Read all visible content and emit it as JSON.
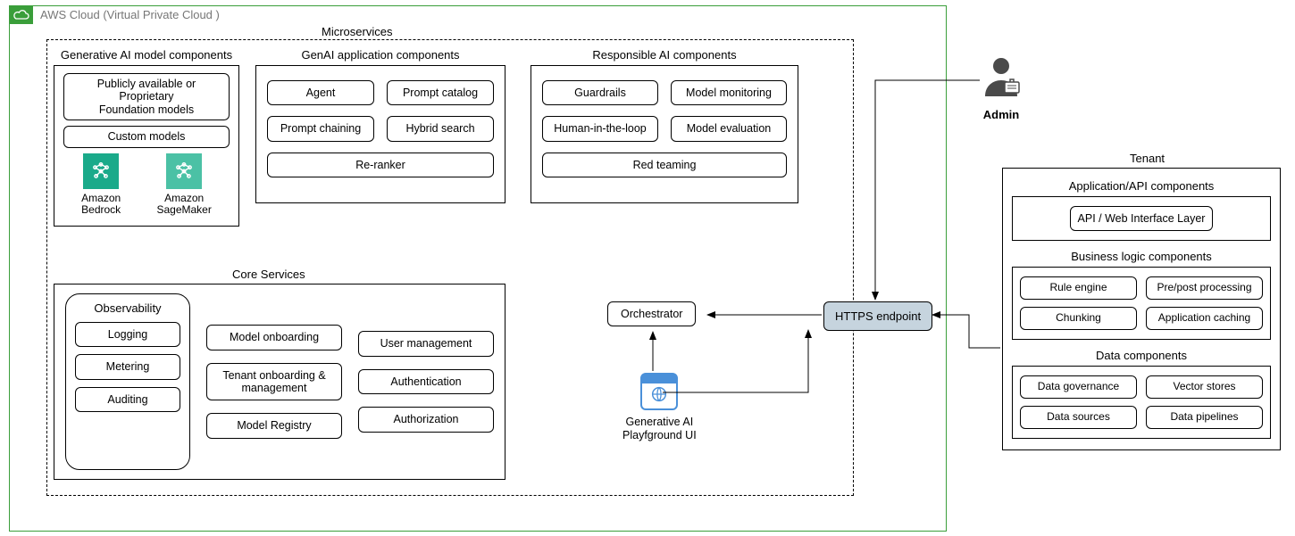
{
  "cloud": {
    "title": "AWS Cloud (Virtual Private Cloud )",
    "border_color": "#3a9e3a"
  },
  "microservices": {
    "title": "Microservices"
  },
  "genai_model": {
    "title": "Generative AI model components",
    "foundation": "Publicly available or\nProprietary\nFoundation models",
    "custom": "Custom models",
    "services": [
      {
        "label": "Amazon\nBedrock",
        "icon_bg": "#1aaa8a"
      },
      {
        "label": "Amazon\nSageMaker",
        "icon_bg": "#4bc1a5"
      }
    ]
  },
  "genai_app": {
    "title": "GenAI application components",
    "items": [
      "Agent",
      "Prompt catalog",
      "Prompt chaining",
      "Hybrid search",
      "Re-ranker"
    ]
  },
  "resp_ai": {
    "title": "Responsible AI components",
    "items": [
      "Guardrails",
      "Model monitoring",
      "Human-in-the-loop",
      "Model evaluation",
      "Red teaming"
    ]
  },
  "core": {
    "title": "Core Services",
    "observability": {
      "title": "Observability",
      "items": [
        "Logging",
        "Metering",
        "Auditing"
      ]
    },
    "col1": [
      "Model onboarding",
      "Tenant onboarding & management",
      "Model Registry"
    ],
    "col2": [
      "User management",
      "Authentication",
      "Authorization"
    ]
  },
  "orchestrator": {
    "label": "Orchestrator"
  },
  "playground": {
    "label": "Generative AI\nPlayfground UI",
    "accent": "#4a90d9"
  },
  "https": {
    "label": "HTTPS endpoint",
    "bg": "#c6d4de"
  },
  "admin": {
    "label": "Admin"
  },
  "tenant": {
    "title": "Tenant",
    "api": {
      "title": "Application/API components",
      "box": "API / Web Interface Layer"
    },
    "business": {
      "title": "Business logic components",
      "col1": [
        "Rule engine",
        "Chunking"
      ],
      "col2": [
        "Pre/post processing",
        "Application caching"
      ]
    },
    "data": {
      "title": "Data components",
      "col1": [
        "Data governance",
        "Data sources"
      ],
      "col2": [
        "Vector stores",
        "Data pipelines"
      ]
    }
  },
  "arrows": {
    "stroke": "#000000",
    "stroke_width": 1
  }
}
